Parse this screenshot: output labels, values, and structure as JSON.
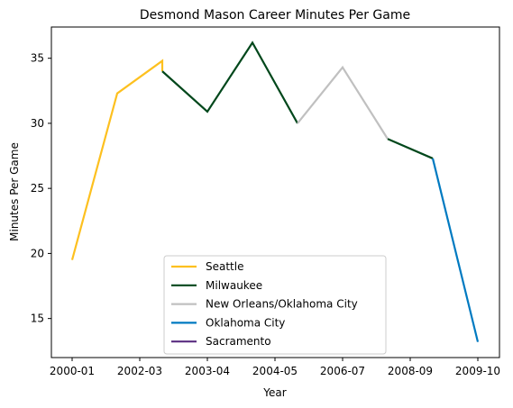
{
  "chart_data": {
    "type": "line",
    "title": "Desmond Mason Career Minutes Per Game",
    "xlabel": "Year",
    "ylabel": "Minutes Per Game",
    "x_ticks": [
      "2000-01",
      "2002-03",
      "2003-04",
      "2004-05",
      "2006-07",
      "2008-09",
      "2009-10"
    ],
    "y_ticks": [
      15,
      20,
      25,
      30,
      35
    ],
    "ylim": [
      12.0,
      37.4
    ],
    "grid": false,
    "legend_position": "lower center",
    "series": [
      {
        "name": "Seattle",
        "color": "#FDC01F",
        "points": [
          {
            "x": 0,
            "y": 19.5
          },
          {
            "x": 1,
            "y": 32.3
          },
          {
            "x": 2,
            "y": 34.8
          },
          {
            "x": 2,
            "y": 34.0
          }
        ]
      },
      {
        "name": "Milwaukee",
        "color": "#00471B",
        "points": [
          {
            "x": 2,
            "y": 34.0
          },
          {
            "x": 3,
            "y": 30.9
          },
          {
            "x": 4,
            "y": 36.2
          },
          {
            "x": 5,
            "y": 30.0
          }
        ]
      },
      {
        "name": "New Orleans/Oklahoma City",
        "color": "#C0C0C0",
        "points": [
          {
            "x": 5,
            "y": 30.0
          },
          {
            "x": 6,
            "y": 34.3
          },
          {
            "x": 7,
            "y": 28.8
          }
        ]
      },
      {
        "name": "Milwaukee",
        "color": "#00471B",
        "in_legend": false,
        "points": [
          {
            "x": 7,
            "y": 28.8
          },
          {
            "x": 8,
            "y": 27.3
          }
        ]
      },
      {
        "name": "Oklahoma City",
        "color": "#007AC1",
        "points": [
          {
            "x": 8,
            "y": 27.3
          },
          {
            "x": 9,
            "y": 13.2
          }
        ]
      },
      {
        "name": "Sacramento",
        "color": "#5A2D81",
        "points": []
      }
    ]
  }
}
